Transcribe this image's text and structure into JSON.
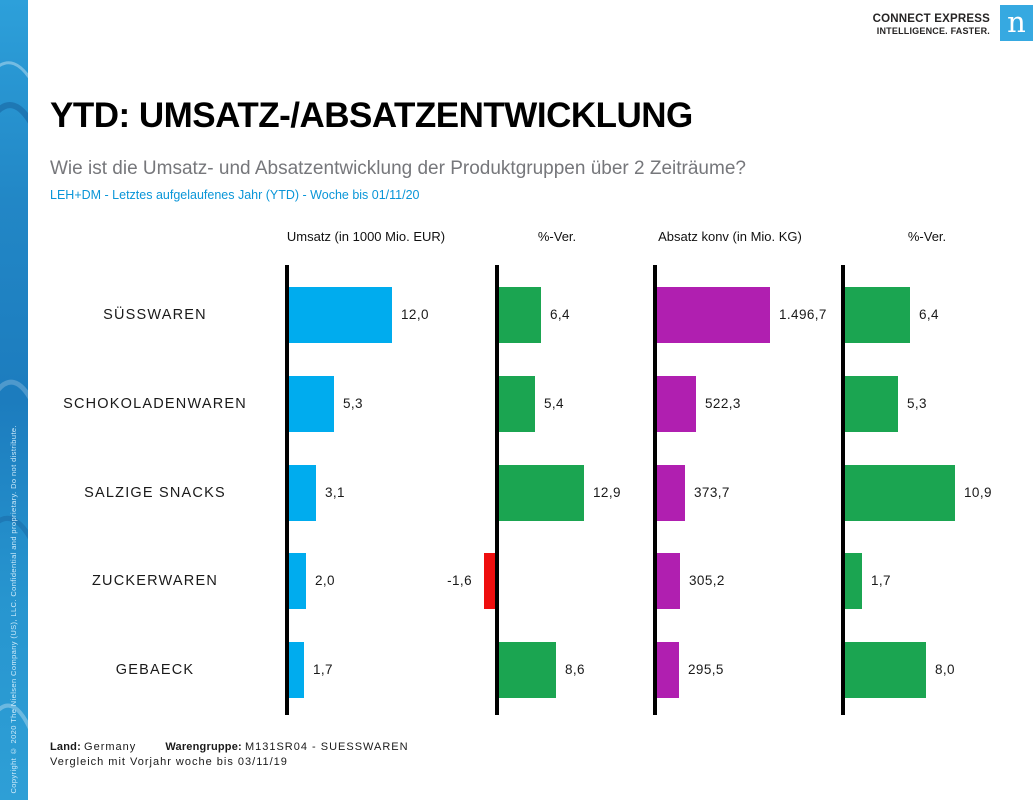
{
  "brand": {
    "tagline_line1": "CONNECT EXPRESS",
    "tagline_line2": "INTELLIGENCE. FASTER.",
    "logo_letter": "n",
    "logo_color": "#36a9e1"
  },
  "sidebar": {
    "copyright": "Copyright © 2020 The Nielsen Company (US), LLC. Confidential and proprietary. Do not distribute."
  },
  "header": {
    "title": "YTD: UMSATZ-/ABSATZENTWICKLUNG",
    "question": "Wie ist die Umsatz- und Absatzentwicklung der Produktgruppen über 2 Zeiträume?",
    "scope": "LEH+DM - Letztes aufgelaufenes Jahr (YTD) - Woche bis 01/11/20",
    "scope_color": "#0a96d8"
  },
  "chart_data": {
    "type": "bar",
    "orientation": "horizontal",
    "grid": false,
    "legend": "none",
    "categories": [
      "SÜSSWAREN",
      "SCHOKOLADENWAREN",
      "SALZIGE SNACKS",
      "ZUCKERWAREN",
      "GEBAECK"
    ],
    "series": [
      {
        "name": "Umsatz (in 1000 Mio. EUR)",
        "color": "#00acee",
        "values": [
          12.0,
          5.3,
          3.1,
          2.0,
          1.7
        ],
        "labels": [
          "12,0",
          "5,3",
          "3,1",
          "2,0",
          "1,7"
        ],
        "axis_max": 12.0
      },
      {
        "name": "%-Ver.",
        "color_positive": "#1ba551",
        "color_negative": "#ee0e0e",
        "values": [
          6.4,
          5.4,
          12.9,
          -1.6,
          8.6
        ],
        "labels": [
          "6,4",
          "5,4",
          "12,9",
          "-1,6",
          "8,6"
        ],
        "axis_max": 12.9
      },
      {
        "name": "Absatz konv (in Mio. KG)",
        "color": "#b01fb0",
        "values": [
          1496.7,
          522.3,
          373.7,
          305.2,
          295.5
        ],
        "labels": [
          "1.496,7",
          "522,3",
          "373,7",
          "305,2",
          "295,5"
        ],
        "axis_max": 1496.7
      },
      {
        "name": "%-Ver.",
        "color_positive": "#1ba551",
        "color_negative": "#ee0e0e",
        "values": [
          6.4,
          5.3,
          10.9,
          1.7,
          8.0
        ],
        "labels": [
          "6,4",
          "5,3",
          "10,9",
          "1,7",
          "8,0"
        ],
        "axis_max": 10.9
      }
    ]
  },
  "footer": {
    "land_label": "Land:",
    "land_value": "Germany",
    "warengruppe_label": "Warengruppe:",
    "warengruppe_value": "M131SR04 - SUESSWAREN",
    "comparison": "Vergleich mit Vorjahr woche bis 03/11/19"
  }
}
